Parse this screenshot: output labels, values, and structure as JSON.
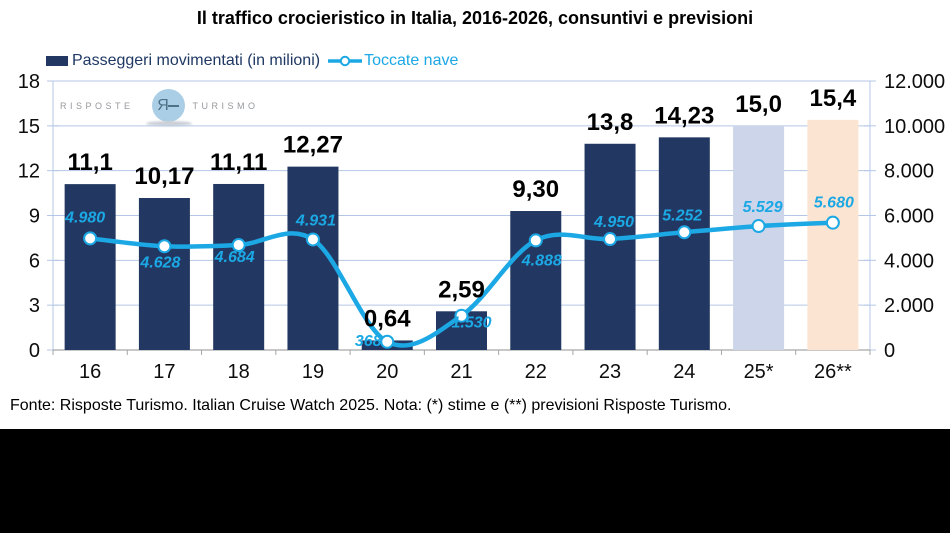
{
  "ui": {
    "title": "Il traffico crocieristico in Italia, 2016-2026, consuntivi e previsioni",
    "legend": [
      {
        "label": "Passeggeri movimentati (in milioni)",
        "type": "bar"
      },
      {
        "label": "Toccate nave",
        "type": "line"
      }
    ],
    "watermark": {
      "left": "RISPOSTE",
      "right": "TURISMO",
      "monogram": "Я"
    },
    "footer": "Fonte: Risposte Turismo. Italian Cruise Watch 2025. Nota: (*) stime e (**) previsioni Risposte Turismo."
  },
  "chart_data": {
    "type": "combo_bar_line",
    "title": "Il traffico crocieristico in Italia, 2016-2026, consuntivi e previsioni",
    "categories": [
      "16",
      "17",
      "18",
      "19",
      "20",
      "21",
      "22",
      "23",
      "24",
      "25*",
      "26**"
    ],
    "series": [
      {
        "name": "Passeggeri movimentati (in milioni)",
        "type": "bar",
        "axis": "left",
        "values": [
          11.1,
          10.17,
          11.11,
          12.27,
          0.64,
          2.59,
          9.3,
          13.8,
          14.23,
          15.0,
          15.4
        ],
        "labels": [
          "11,1",
          "10,17",
          "11,11",
          "12,27",
          "0,64",
          "2,59",
          "9,30",
          "13,8",
          "14,23",
          "15,0",
          "15,4"
        ],
        "colors": [
          "#223862",
          "#223862",
          "#223862",
          "#223862",
          "#223862",
          "#223862",
          "#223862",
          "#223862",
          "#223862",
          "#ccd5ea",
          "#fbe4d2"
        ]
      },
      {
        "name": "Toccate nave",
        "type": "line",
        "axis": "right",
        "values": [
          4980,
          4628,
          4684,
          4931,
          368,
          1530,
          4888,
          4950,
          5252,
          5529,
          5680
        ],
        "labels": [
          "4.980",
          "4.628",
          "4.684",
          "4.931",
          "368",
          "1.530",
          "4.888",
          "4.950",
          "5.252",
          "5.529",
          "5.680"
        ],
        "label_offsets": [
          [
            -5,
            -16
          ],
          [
            -4,
            21
          ],
          [
            -4,
            17
          ],
          [
            3,
            -14
          ],
          [
            -19,
            4
          ],
          [
            10,
            12
          ],
          [
            6,
            25
          ],
          [
            4,
            -12
          ],
          [
            -2,
            -12
          ],
          [
            4,
            -14
          ],
          [
            1,
            -15
          ]
        ],
        "color": "#1ba8e4",
        "marker": "open-circle"
      }
    ],
    "axes": {
      "left": {
        "min": 0,
        "max": 18,
        "step": 3,
        "tick_labels": [
          "0",
          "3",
          "6",
          "9",
          "12",
          "15",
          "18"
        ]
      },
      "right": {
        "min": 0,
        "max": 12000,
        "step": 2000,
        "tick_labels": [
          "0",
          "2.000",
          "4.000",
          "6.000",
          "8.000",
          "10.000",
          "12.000"
        ]
      }
    },
    "grid": true,
    "legend_position": "top-left",
    "colors": {
      "grid": "#b4c7e6",
      "side_axis": "#b4c7e6",
      "bottom_axis": "#a6a6a6",
      "bar_label": "#000000",
      "line_label": "#1ba8e4"
    }
  }
}
